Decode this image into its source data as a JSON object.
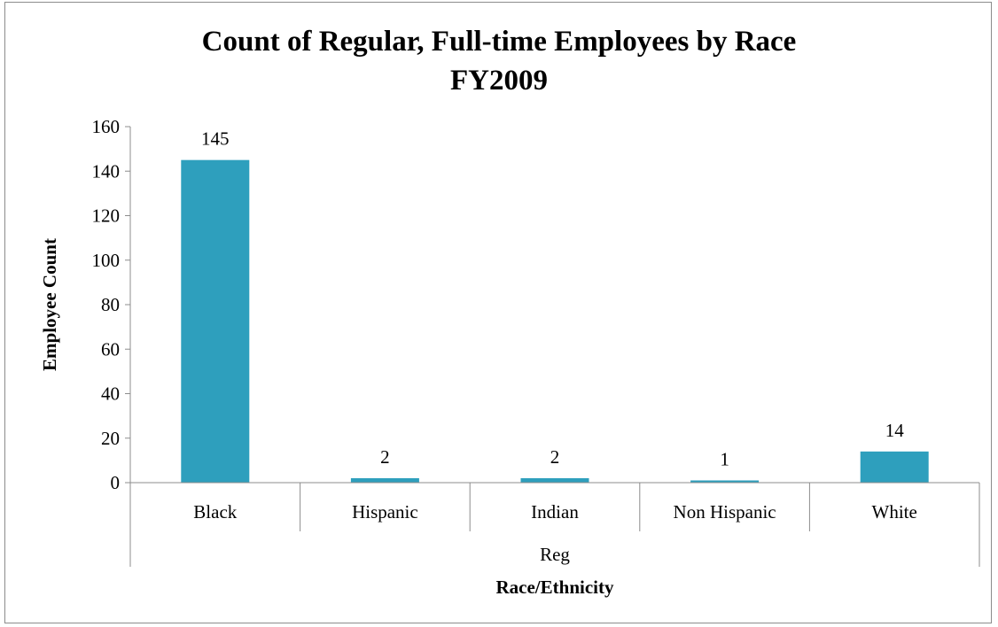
{
  "chart_data": {
    "type": "bar",
    "title_lines": [
      "Count of Regular, Full-time Employees by Race",
      "FY2009"
    ],
    "categories": [
      "Black",
      "Hispanic",
      "Indian",
      "Non Hispanic",
      "White"
    ],
    "group_label": "Reg",
    "series": [
      {
        "values": [
          145,
          2,
          2,
          1,
          14
        ]
      }
    ],
    "data_labels": [
      "145",
      "2",
      "2",
      "1",
      "14"
    ],
    "xlabel": "Race/Ethnicity",
    "ylabel": "Employee Count",
    "ylim": [
      0,
      160
    ],
    "yticks": [
      0,
      20,
      40,
      60,
      80,
      100,
      120,
      140,
      160
    ],
    "grid": false,
    "legend": "none",
    "bar_color": "#2e9fbd"
  }
}
